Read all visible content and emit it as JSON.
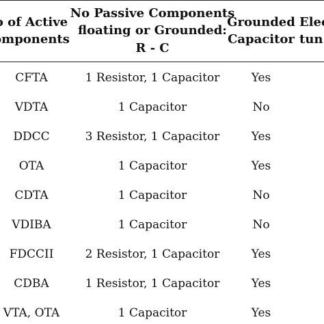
{
  "table": {
    "headers": [
      {
        "lines": [
          "o of Active",
          "omponents"
        ]
      },
      {
        "lines": [
          "No Passive Components",
          "floating or Grounded:",
          "R - C"
        ]
      },
      {
        "lines": [
          "Grounded",
          "Capacitor"
        ]
      },
      {
        "lines": [
          "Elec",
          "tun"
        ]
      }
    ],
    "rows": [
      {
        "active": "CFTA",
        "passive": "1 Resistor, 1 Capacitor",
        "grounded": "Yes"
      },
      {
        "active": "VDTA",
        "passive": "1 Capacitor",
        "grounded": "No"
      },
      {
        "active": "DDCC",
        "passive": "3 Resistor, 1 Capacitor",
        "grounded": "Yes"
      },
      {
        "active": "OTA",
        "passive": "1 Capacitor",
        "grounded": "Yes"
      },
      {
        "active": "CDTA",
        "passive": "1 Capacitor",
        "grounded": "No"
      },
      {
        "active": "VDIBA",
        "passive": "1 Capacitor",
        "grounded": "No"
      },
      {
        "active": "FDCCII",
        "passive": "2 Resistor, 1 Capacitor",
        "grounded": "Yes"
      },
      {
        "active": "CDBA",
        "passive": "1 Resistor, 1 Capacitor",
        "grounded": "Yes"
      },
      {
        "active": "VTA, OTA",
        "passive": "1 Capacitor",
        "grounded": "Yes"
      }
    ]
  }
}
